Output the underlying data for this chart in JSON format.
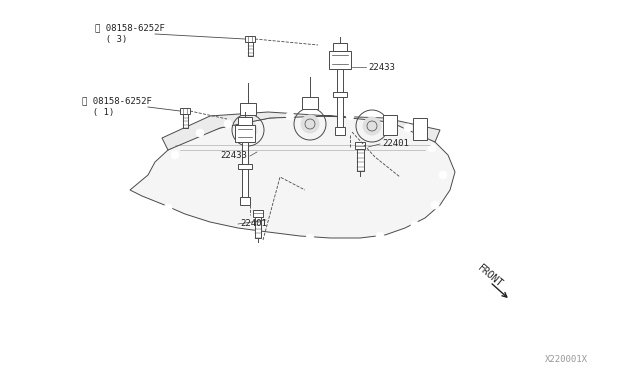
{
  "bg_color": "#ffffff",
  "lc": "#4a4a4a",
  "lc2": "#666666",
  "label_color": "#222222",
  "watermark": "X220001X",
  "front_label": "FRONT",
  "bolt_upper_label": "Ⓑ 08158-6252F\n  ( 3)",
  "bolt_lower_label": "Ⓑ 08158-6252F\n  ( 1)",
  "label_22433_upper": "22433",
  "label_22433_lower": "22433",
  "label_22401_upper": "22401",
  "label_22401_lower": "22401",
  "figsize": [
    6.4,
    3.72
  ],
  "dpi": 100
}
